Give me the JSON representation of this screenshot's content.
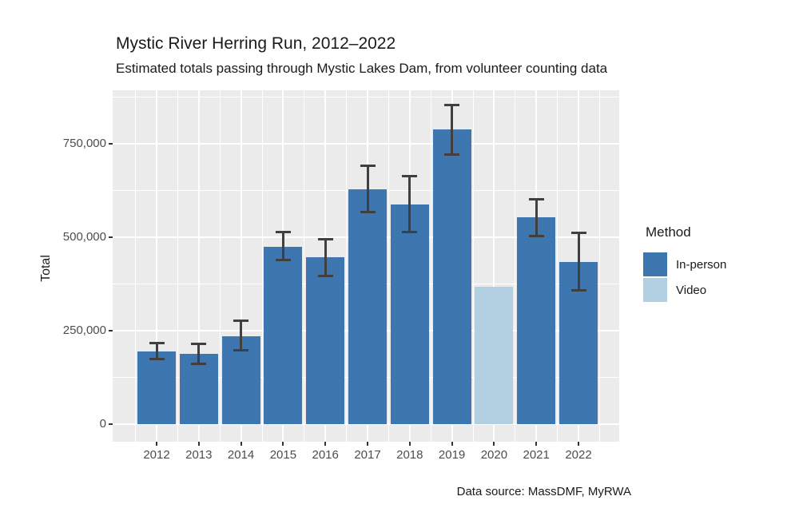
{
  "title": "Mystic River Herring Run, 2012–2022",
  "subtitle": "Estimated totals passing through Mystic Lakes Dam, from volunteer counting data",
  "caption": "Data source: MassDMF, MyRWA",
  "y_axis": {
    "title": "Total",
    "tick_values": [
      0,
      250000,
      500000,
      750000
    ],
    "tick_labels": [
      "0",
      "250,000",
      "500,000",
      "750,000"
    ]
  },
  "x_axis": {
    "tick_labels": [
      "2012",
      "2013",
      "2014",
      "2015",
      "2016",
      "2017",
      "2018",
      "2019",
      "2020",
      "2021",
      "2022"
    ]
  },
  "legend": {
    "title": "Method",
    "items": [
      {
        "label": "In-person",
        "color": "#3E77B0"
      },
      {
        "label": "Video",
        "color": "#B3D0E3"
      }
    ]
  },
  "colors": {
    "bar_in_person": "#3E77B0",
    "bar_video": "#B3D0E3",
    "panel_bg": "#EBEBEB",
    "grid": "#FFFFFF",
    "error_bar": "#404040",
    "axis_text": "#4D4D4D",
    "tick_mark": "#333333",
    "text": "#1A1A1A"
  },
  "chart_data": {
    "type": "bar",
    "title": "Mystic River Herring Run, 2012–2022",
    "subtitle": "Estimated totals passing through Mystic Lakes Dam, from volunteer counting data",
    "xlabel": "",
    "ylabel": "Total",
    "ylim": [
      0,
      900000
    ],
    "y_ticks": [
      0,
      250000,
      500000,
      750000
    ],
    "grid": true,
    "legend_position": "right",
    "categories": [
      2012,
      2013,
      2014,
      2015,
      2016,
      2017,
      2018,
      2019,
      2020,
      2021,
      2022
    ],
    "series": [
      {
        "name": "Total",
        "values": [
          195000,
          188000,
          235000,
          474000,
          447000,
          629000,
          588000,
          788000,
          367000,
          554000,
          434000
        ]
      }
    ],
    "method": [
      "In-person",
      "In-person",
      "In-person",
      "In-person",
      "In-person",
      "In-person",
      "In-person",
      "In-person",
      "Video",
      "In-person",
      "In-person"
    ],
    "error_low": [
      175000,
      162000,
      198000,
      440000,
      397000,
      568000,
      513000,
      722000,
      null,
      504000,
      358000
    ],
    "error_high": [
      216000,
      215000,
      276000,
      513000,
      495000,
      691000,
      664000,
      853000,
      null,
      602000,
      511000
    ]
  }
}
